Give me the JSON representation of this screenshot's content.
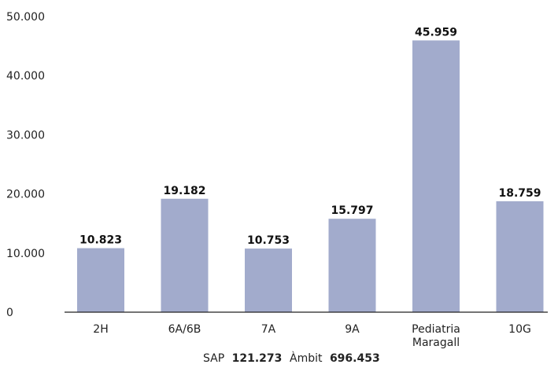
{
  "chart_data": {
    "type": "bar",
    "categories": [
      "2H",
      "6A/6B",
      "7A",
      "9A",
      "Pediatria Maragall",
      "10G"
    ],
    "values": [
      10823,
      19182,
      10753,
      15797,
      45959,
      18759
    ],
    "value_labels": [
      "10.823",
      "19.182",
      "10.753",
      "15.797",
      "45.959",
      "18.759"
    ],
    "ylim": [
      0,
      50000
    ],
    "y_ticks": [
      0,
      10000,
      20000,
      30000,
      40000,
      50000
    ],
    "y_tick_labels": [
      "0",
      "10.000",
      "20.000",
      "30.000",
      "40.000",
      "50.000"
    ],
    "grid": false,
    "bar_color": "#a2abcc",
    "axis_color": "#222222",
    "title": "",
    "xlabel": "",
    "ylabel": ""
  },
  "footer": {
    "sap_label": "SAP",
    "sap_value": "121.273",
    "ambit_label": "Àmbit",
    "ambit_value": "696.453"
  }
}
